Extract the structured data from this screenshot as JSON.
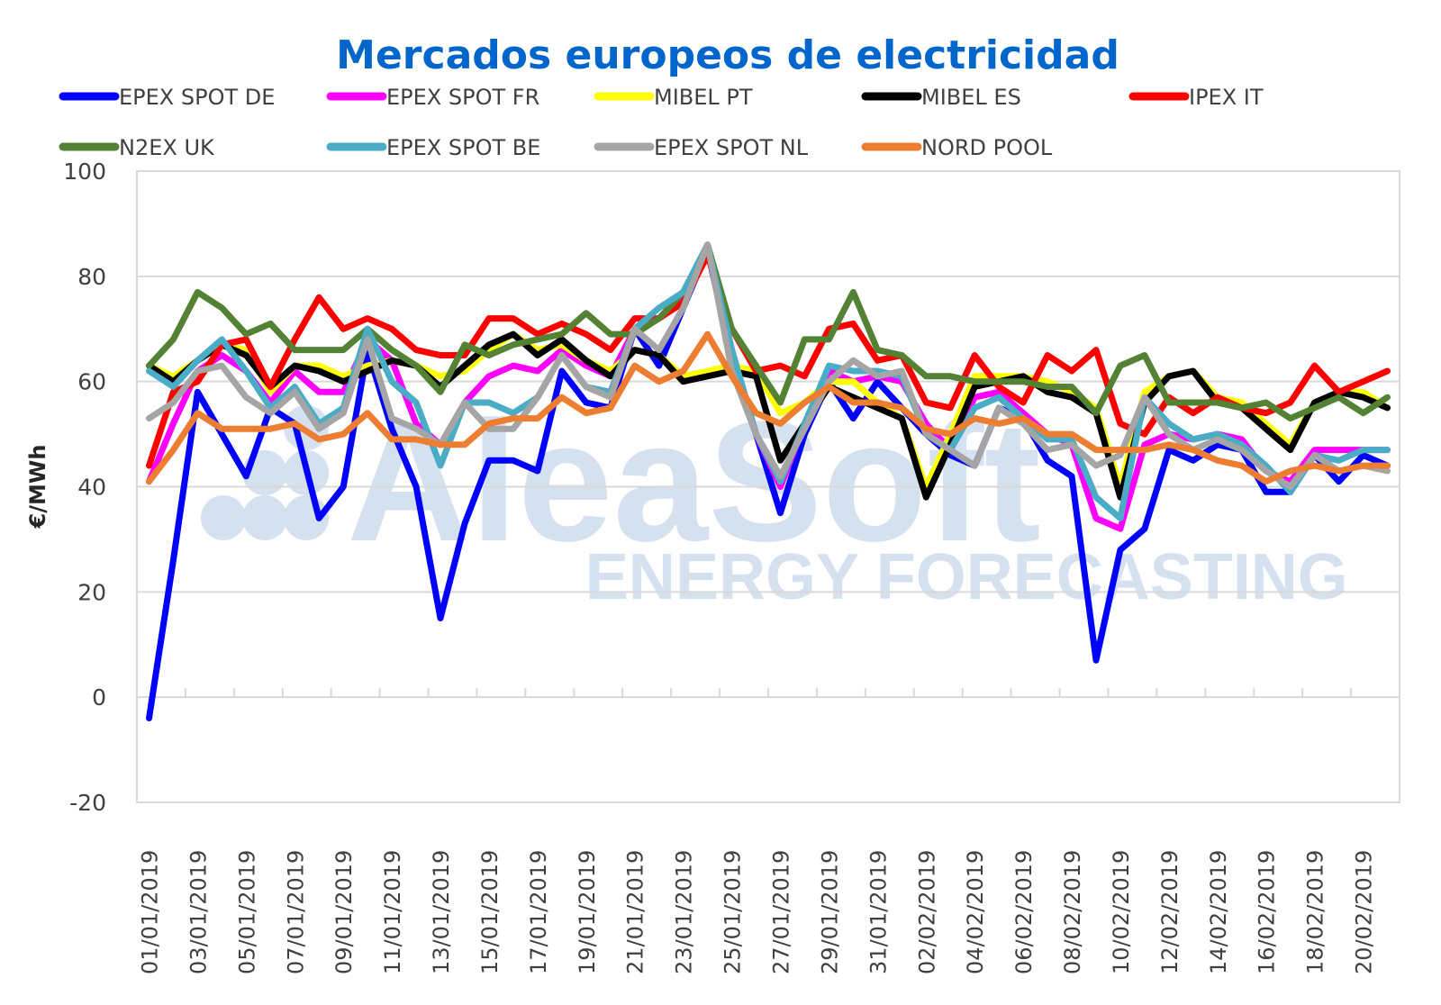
{
  "chart_data": {
    "type": "line",
    "title": "Mercados europeos de electricidad",
    "xlabel": "",
    "ylabel": "€/MWh",
    "ylim": [
      -20,
      100
    ],
    "yticks": [
      -20,
      0,
      20,
      40,
      60,
      80,
      100
    ],
    "grid": true,
    "legend_position": "top",
    "watermark": {
      "main": "AleaSoft",
      "sub": "ENERGY FORECASTING"
    },
    "x": [
      "01/01/2019",
      "02/01/2019",
      "03/01/2019",
      "04/01/2019",
      "05/01/2019",
      "06/01/2019",
      "07/01/2019",
      "08/01/2019",
      "09/01/2019",
      "10/01/2019",
      "11/01/2019",
      "12/01/2019",
      "13/01/2019",
      "14/01/2019",
      "15/01/2019",
      "16/01/2019",
      "17/01/2019",
      "18/01/2019",
      "19/01/2019",
      "20/01/2019",
      "21/01/2019",
      "22/01/2019",
      "23/01/2019",
      "24/01/2019",
      "25/01/2019",
      "26/01/2019",
      "27/01/2019",
      "28/01/2019",
      "29/01/2019",
      "30/01/2019",
      "31/01/2019",
      "01/02/2019",
      "02/02/2019",
      "03/02/2019",
      "04/02/2019",
      "05/02/2019",
      "06/02/2019",
      "07/02/2019",
      "08/02/2019",
      "09/02/2019",
      "10/02/2019",
      "11/02/2019",
      "12/02/2019",
      "13/02/2019",
      "14/02/2019",
      "15/02/2019",
      "16/02/2019",
      "17/02/2019",
      "18/02/2019",
      "19/02/2019",
      "20/02/2019",
      "21/02/2019"
    ],
    "xtick_labels": [
      "01/01/2019",
      "03/01/2019",
      "05/01/2019",
      "07/01/2019",
      "09/01/2019",
      "11/01/2019",
      "13/01/2019",
      "15/01/2019",
      "17/01/2019",
      "19/01/2019",
      "21/01/2019",
      "23/01/2019",
      "25/01/2019",
      "27/01/2019",
      "29/01/2019",
      "31/01/2019",
      "02/02/2019",
      "04/02/2019",
      "06/02/2019",
      "08/02/2019",
      "10/02/2019",
      "12/02/2019",
      "14/02/2019",
      "16/02/2019",
      "18/02/2019",
      "20/02/2019"
    ],
    "series": [
      {
        "name": "EPEX SPOT DE",
        "color": "#0000ff",
        "values": [
          -4,
          26,
          58,
          50,
          42,
          55,
          52,
          34,
          40,
          66,
          51,
          40,
          15,
          33,
          45,
          45,
          43,
          62,
          56,
          55,
          70,
          63,
          74,
          85,
          64,
          50,
          35,
          50,
          60,
          53,
          60,
          55,
          50,
          46,
          44,
          55,
          53,
          45,
          42,
          7,
          28,
          32,
          47,
          45,
          48,
          47,
          39,
          39,
          46,
          41,
          46,
          44
        ]
      },
      {
        "name": "EPEX SPOT FR",
        "color": "#ff00ff",
        "values": [
          41,
          52,
          62,
          65,
          62,
          56,
          62,
          58,
          58,
          68,
          64,
          52,
          48,
          56,
          61,
          63,
          62,
          66,
          63,
          61,
          70,
          72,
          76,
          86,
          66,
          50,
          40,
          52,
          62,
          60,
          61,
          60,
          52,
          47,
          57,
          58,
          54,
          50,
          48,
          34,
          32,
          48,
          50,
          49,
          50,
          49,
          43,
          41,
          47,
          47,
          47,
          47
        ]
      },
      {
        "name": "MIBEL PT",
        "color": "#ffff00",
        "values": [
          63,
          61,
          64,
          67,
          66,
          58,
          63,
          63,
          61,
          63,
          64,
          63,
          61,
          62,
          66,
          69,
          66,
          67,
          64,
          62,
          66,
          65,
          61,
          62,
          63,
          62,
          54,
          56,
          60,
          60,
          56,
          53,
          40,
          50,
          61,
          61,
          61,
          60,
          58,
          55,
          40,
          58,
          61,
          62,
          57,
          56,
          52,
          48,
          56,
          58,
          58,
          55
        ]
      },
      {
        "name": "MIBEL ES",
        "color": "#000000",
        "values": [
          63,
          60,
          64,
          67,
          65,
          59,
          63,
          62,
          60,
          62,
          64,
          63,
          59,
          63,
          67,
          69,
          65,
          68,
          64,
          61,
          66,
          65,
          60,
          61,
          62,
          61,
          45,
          52,
          59,
          57,
          55,
          53,
          38,
          48,
          59,
          60,
          61,
          58,
          57,
          54,
          38,
          56,
          61,
          62,
          56,
          55,
          51,
          47,
          56,
          58,
          57,
          55
        ]
      },
      {
        "name": "IPEX IT",
        "color": "#ff0000",
        "values": [
          44,
          58,
          60,
          67,
          68,
          59,
          68,
          76,
          70,
          72,
          70,
          66,
          65,
          65,
          72,
          72,
          69,
          71,
          69,
          66,
          72,
          72,
          75,
          84,
          70,
          62,
          63,
          61,
          70,
          71,
          64,
          65,
          56,
          55,
          65,
          59,
          56,
          65,
          62,
          66,
          52,
          50,
          57,
          54,
          57,
          55,
          54,
          56,
          63,
          58,
          60,
          62
        ]
      },
      {
        "name": "N2EX UK",
        "color": "#548235",
        "values": [
          63,
          68,
          77,
          74,
          69,
          71,
          66,
          66,
          66,
          70,
          66,
          63,
          58,
          67,
          65,
          67,
          68,
          69,
          73,
          69,
          69,
          72,
          77,
          86,
          70,
          63,
          56,
          68,
          68,
          77,
          66,
          65,
          61,
          61,
          60,
          60,
          60,
          59,
          59,
          54,
          63,
          65,
          56,
          56,
          56,
          55,
          56,
          53,
          55,
          57,
          54,
          57
        ]
      },
      {
        "name": "EPEX SPOT BE",
        "color": "#4bacc6",
        "values": [
          62,
          59,
          64,
          68,
          62,
          55,
          59,
          52,
          55,
          70,
          60,
          56,
          44,
          56,
          56,
          54,
          57,
          65,
          59,
          58,
          70,
          74,
          77,
          86,
          66,
          50,
          41,
          52,
          63,
          62,
          62,
          61,
          50,
          47,
          55,
          57,
          53,
          49,
          49,
          38,
          34,
          57,
          52,
          49,
          50,
          48,
          44,
          39,
          46,
          45,
          47,
          47
        ]
      },
      {
        "name": "EPEX SPOT NL",
        "color": "#a5a5a5",
        "values": [
          53,
          56,
          62,
          63,
          57,
          54,
          58,
          51,
          54,
          68,
          53,
          51,
          48,
          56,
          51,
          51,
          57,
          65,
          59,
          57,
          70,
          66,
          74,
          86,
          62,
          50,
          42,
          51,
          60,
          64,
          61,
          62,
          50,
          47,
          44,
          55,
          52,
          47,
          48,
          44,
          46,
          57,
          50,
          47,
          49,
          47,
          43,
          40,
          46,
          43,
          44,
          43
        ]
      },
      {
        "name": "NORD POOL",
        "color": "#ed7d31",
        "values": [
          41,
          47,
          54,
          51,
          51,
          51,
          52,
          49,
          50,
          54,
          49,
          49,
          48,
          48,
          52,
          53,
          53,
          57,
          54,
          55,
          63,
          60,
          62,
          69,
          61,
          54,
          52,
          56,
          59,
          56,
          56,
          55,
          51,
          50,
          53,
          52,
          53,
          50,
          50,
          47,
          47,
          47,
          48,
          47,
          45,
          44,
          41,
          43,
          44,
          43,
          44,
          44
        ]
      }
    ]
  }
}
